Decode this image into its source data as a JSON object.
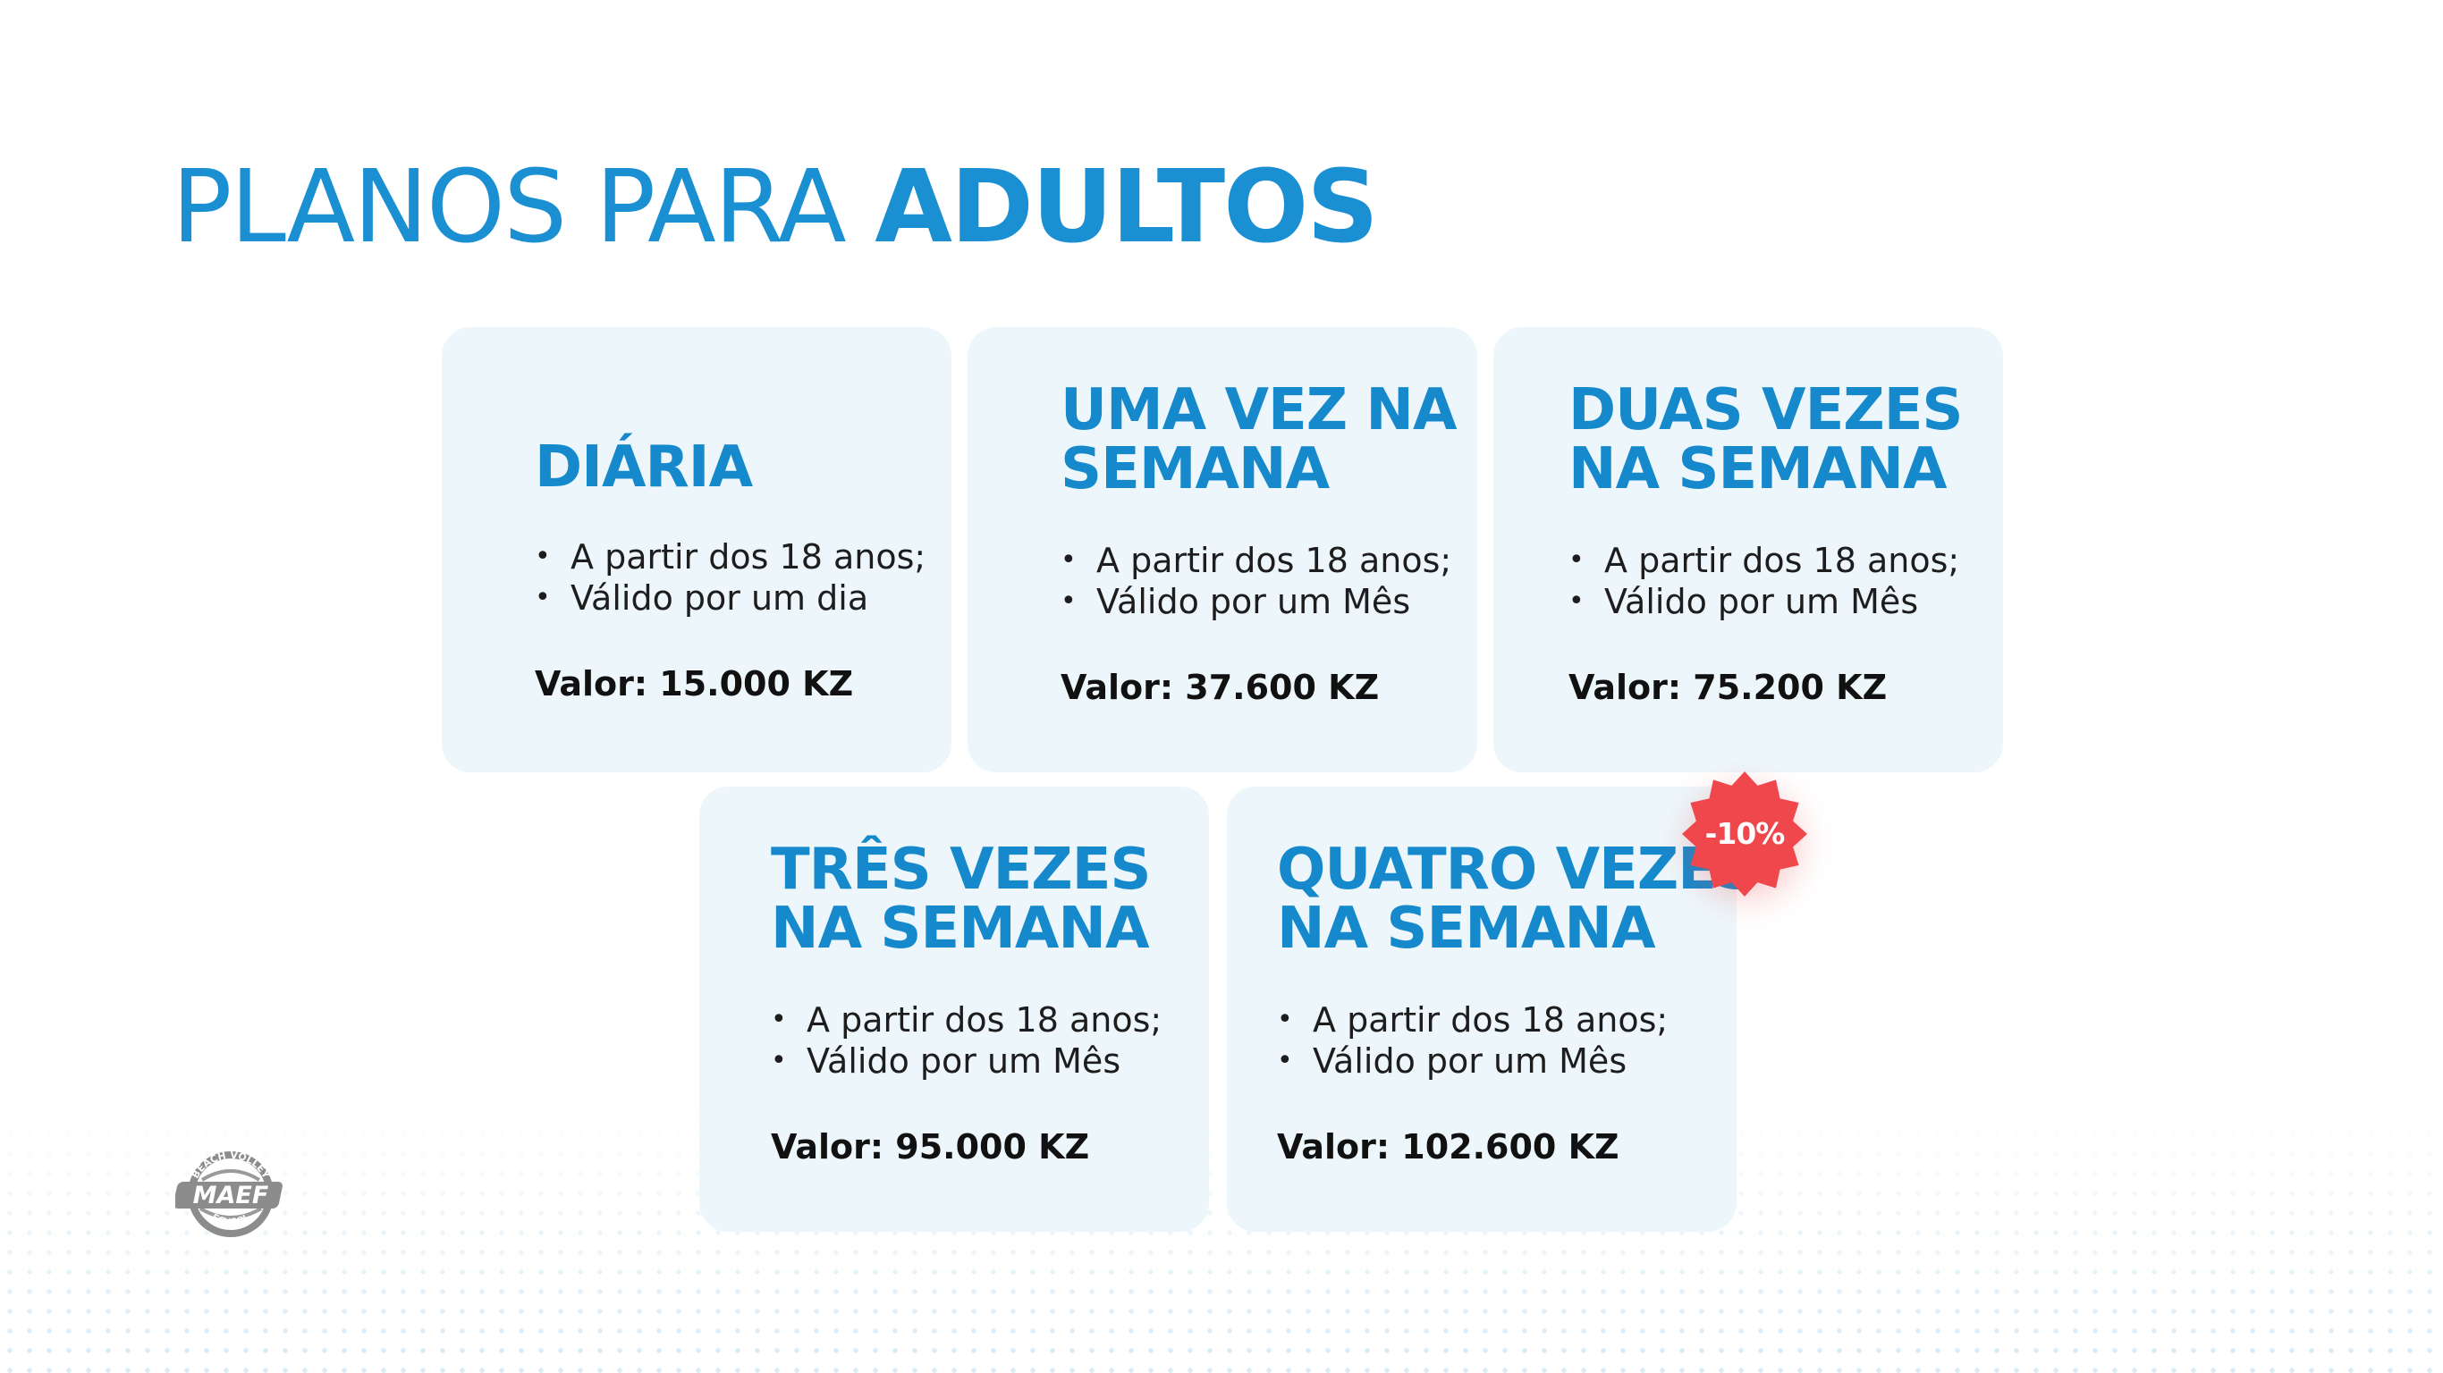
{
  "heading": {
    "prefix": "PLANOS PARA",
    "emphasis": "ADULTOS"
  },
  "plans": [
    {
      "title_line1": "DIÁRIA",
      "title_line2": "",
      "bullets": [
        "A partir dos 18 anos;",
        "Válido por um dia"
      ],
      "price": "Valor: 15.000 KZ"
    },
    {
      "title_line1": "UMA VEZ NA",
      "title_line2": "SEMANA",
      "bullets": [
        "A partir dos 18 anos;",
        "Válido por um Mês"
      ],
      "price": "Valor: 37.600 KZ"
    },
    {
      "title_line1": "DUAS VEZES",
      "title_line2": "NA SEMANA",
      "bullets": [
        "A partir dos 18 anos;",
        "Válido por um Mês"
      ],
      "price": "Valor: 75.200 KZ"
    },
    {
      "title_line1": "TRÊS VEZES",
      "title_line2": "NA SEMANA",
      "bullets": [
        "A partir dos 18 anos;",
        "Válido por um Mês"
      ],
      "price": "Valor: 95.000 KZ"
    },
    {
      "title_line1": "QUATRO VEZES",
      "title_line2": "NA SEMANA",
      "bullets": [
        "A partir dos 18 anos;",
        "Válido por um Mês"
      ],
      "price": "Valor: 102.600 KZ"
    }
  ],
  "discount_badge": {
    "label": "-10%",
    "color": "#f0474c"
  },
  "logo": {
    "icon": "volleyball-school-logo",
    "wordmark": "MAEF",
    "arc_top": "BEACH VOLLEY",
    "arc_bottom": "SCHOOL"
  },
  "colors": {
    "accent": "#1a90d3",
    "card_background": "#ecf6fb",
    "text": "#1d1d1d"
  }
}
